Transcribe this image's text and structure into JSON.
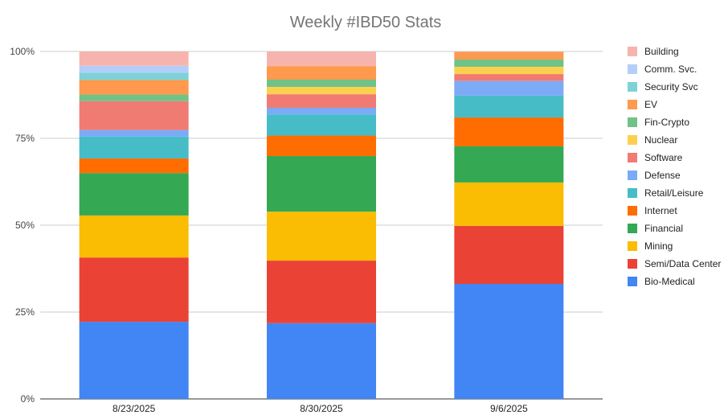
{
  "chart_data": {
    "type": "bar",
    "stacked": "percent",
    "title": "Weekly #IBD50 Stats",
    "xlabel": "",
    "ylabel": "",
    "ylim": [
      0,
      100
    ],
    "yticks": [
      "0%",
      "25%",
      "50%",
      "75%",
      "100%"
    ],
    "grid": true,
    "legend_position": "right",
    "categories": [
      "8/23/2025",
      "8/30/2025",
      "9/6/2025"
    ],
    "series": [
      {
        "name": "Bio-Medical",
        "color": "#4285f4",
        "values": [
          22.2,
          21.8,
          33.1
        ]
      },
      {
        "name": "Semi/Data Center",
        "color": "#ea4335",
        "values": [
          18.5,
          18.0,
          16.7
        ]
      },
      {
        "name": "Mining",
        "color": "#fbbc04",
        "values": [
          12.1,
          14.1,
          12.5
        ]
      },
      {
        "name": "Financial",
        "color": "#34a853",
        "values": [
          12.2,
          16.0,
          10.4
        ]
      },
      {
        "name": "Internet",
        "color": "#ff6d01",
        "values": [
          4.2,
          5.9,
          8.3
        ]
      },
      {
        "name": "Retail/Leisure",
        "color": "#46bdc6",
        "values": [
          6.3,
          6.1,
          6.3
        ]
      },
      {
        "name": "Defense",
        "color": "#7baaf7",
        "values": [
          1.9,
          1.9,
          4.2
        ]
      },
      {
        "name": "Software",
        "color": "#f07b72",
        "values": [
          8.3,
          3.9,
          2.0
        ]
      },
      {
        "name": "Nuclear",
        "color": "#fcd04f",
        "values": [
          0,
          2.1,
          2.1
        ]
      },
      {
        "name": "Fin-Crypto",
        "color": "#71c287",
        "values": [
          1.9,
          2.1,
          2.1
        ]
      },
      {
        "name": "EV",
        "color": "#ff994d",
        "values": [
          4.2,
          3.9,
          2.2
        ]
      },
      {
        "name": "Security Svc",
        "color": "#7ed1d7",
        "values": [
          2.1,
          0,
          0
        ]
      },
      {
        "name": "Comm. Svc.",
        "color": "#b3cefb",
        "values": [
          2.0,
          0,
          0
        ]
      },
      {
        "name": "Building",
        "color": "#f7b4ae",
        "values": [
          4.1,
          4.2,
          0
        ]
      }
    ]
  }
}
